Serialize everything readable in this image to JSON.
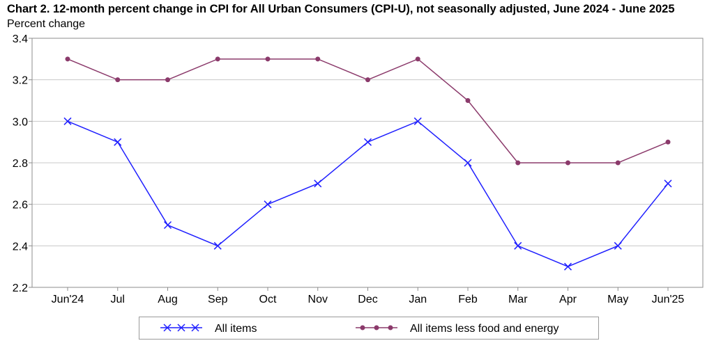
{
  "title": "Chart 2. 12-month percent change in CPI for All Urban Consumers (CPI-U), not seasonally adjusted, June 2024 - June 2025",
  "subtitle": "Percent change",
  "chart_data": {
    "type": "line",
    "title": "Chart 2. 12-month percent change in CPI for All Urban Consumers (CPI-U), not seasonally adjusted, June 2024 - June 2025",
    "ylabel": "Percent change",
    "xlabel": "",
    "categories": [
      "Jun'24",
      "Jul",
      "Aug",
      "Sep",
      "Oct",
      "Nov",
      "Dec",
      "Jan",
      "Feb",
      "Mar",
      "Apr",
      "May",
      "Jun'25"
    ],
    "ylim": [
      2.2,
      3.4
    ],
    "yticks": [
      "2.2",
      "2.4",
      "2.6",
      "2.8",
      "3.0",
      "3.2",
      "3.4"
    ],
    "grid": true,
    "legend_position": "bottom",
    "series": [
      {
        "name": "All items",
        "color": "#1f1fff",
        "marker": "x",
        "values": [
          3.0,
          2.9,
          2.5,
          2.4,
          2.6,
          2.7,
          2.9,
          3.0,
          2.8,
          2.4,
          2.3,
          2.4,
          2.7
        ]
      },
      {
        "name": "All items less food and energy",
        "color": "#8b3a6b",
        "marker": "dot",
        "values": [
          3.3,
          3.2,
          3.2,
          3.3,
          3.3,
          3.3,
          3.2,
          3.3,
          3.1,
          2.8,
          2.8,
          2.8,
          2.9
        ]
      }
    ]
  }
}
